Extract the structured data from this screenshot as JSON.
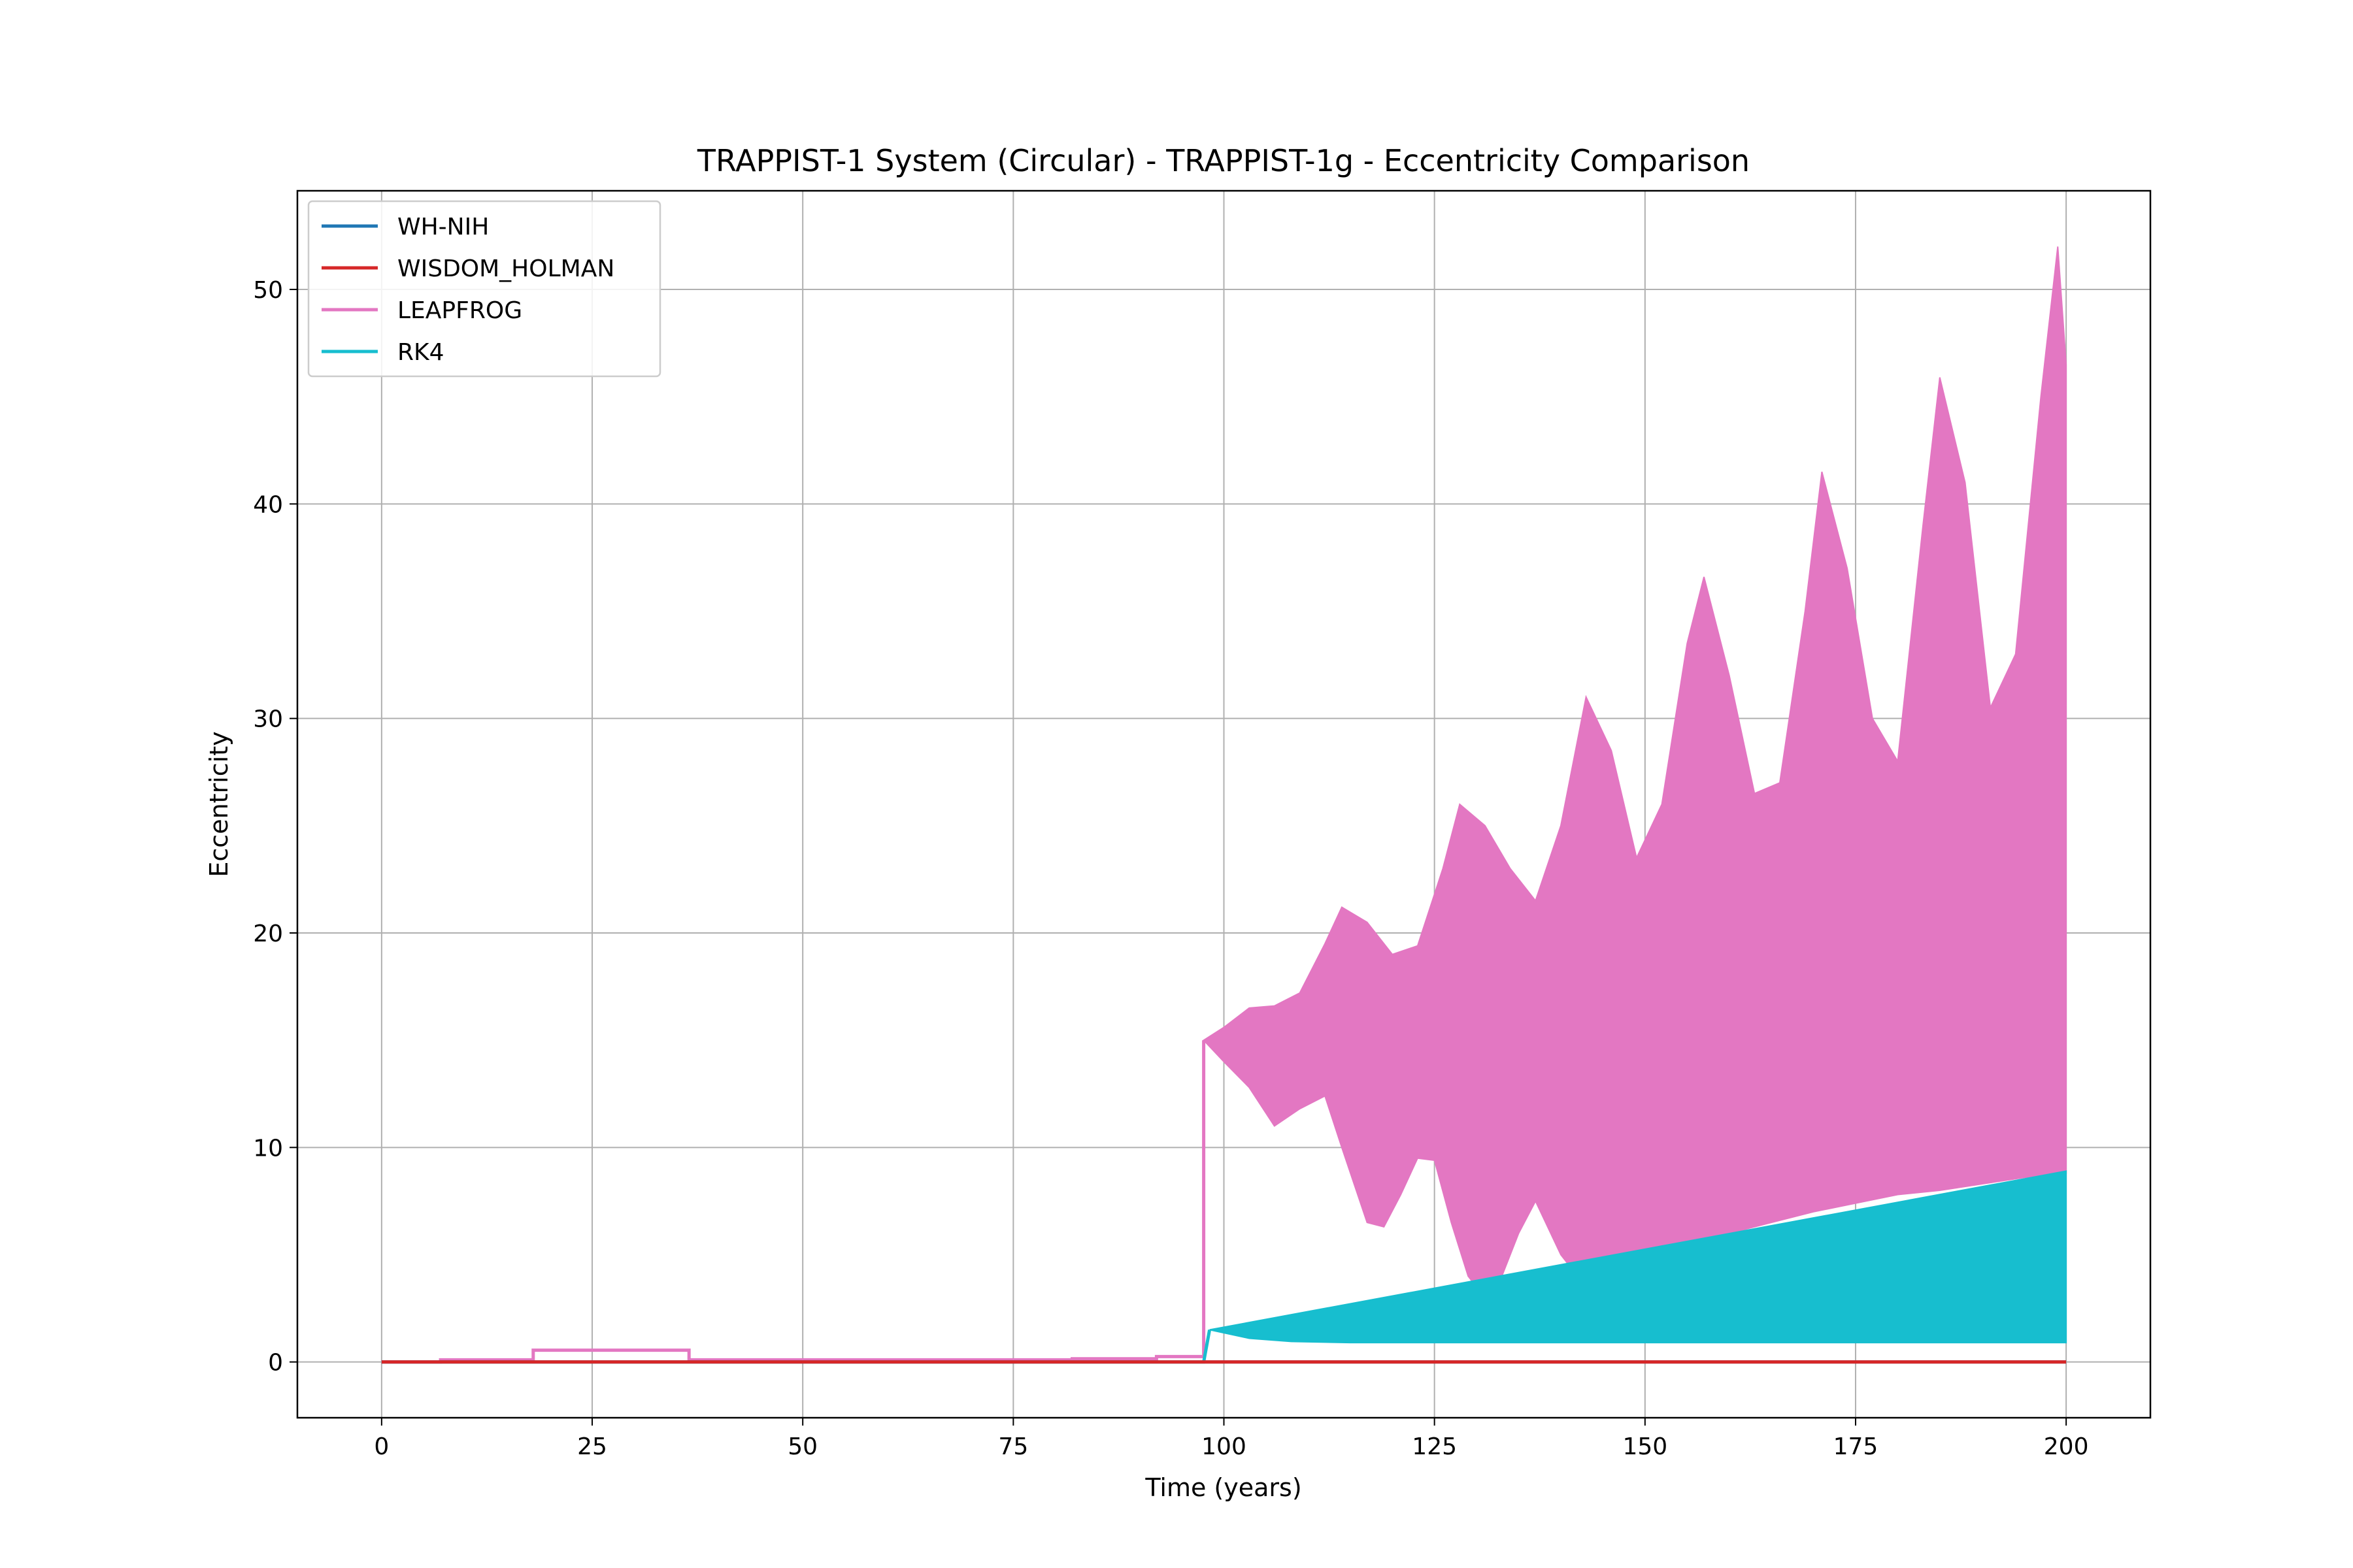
{
  "chart_data": {
    "type": "line",
    "title": "TRAPPIST-1 System (Circular) - TRAPPIST-1g - Eccentricity Comparison",
    "xlabel": "Time (years)",
    "ylabel": "Eccentricity",
    "xlim": [
      -10,
      210
    ],
    "ylim": [
      -2.6,
      54.6
    ],
    "xticks": [
      0,
      25,
      50,
      75,
      100,
      125,
      150,
      175,
      200
    ],
    "yticks": [
      0,
      10,
      20,
      30,
      40,
      50
    ],
    "grid": true,
    "legend_position": "top-left",
    "series": [
      {
        "name": "WH-NIH",
        "color": "#1f77b4",
        "style": "line",
        "x": [
          0,
          200
        ],
        "y": [
          0,
          0
        ]
      },
      {
        "name": "WISDOM_HOLMAN",
        "color": "#d62728",
        "style": "line",
        "x": [
          0,
          200
        ],
        "y": [
          0,
          0
        ]
      },
      {
        "name": "LEAPFROG",
        "color": "#e377c2",
        "style": "band",
        "pre_x": [
          0,
          7,
          7,
          18,
          18,
          36.5,
          36.5,
          82,
          82,
          92,
          92,
          97.6,
          97.6
        ],
        "pre_y": [
          0,
          0,
          0.1,
          0.1,
          0.55,
          0.55,
          0.1,
          0.1,
          0.15,
          0.15,
          0.25,
          0.25,
          15
        ],
        "upper": {
          "x": [
            97.6,
            100,
            103,
            106,
            109,
            112,
            114,
            117,
            120,
            123,
            126,
            128,
            131,
            134,
            137,
            140,
            143,
            146,
            149,
            152,
            155,
            157,
            160,
            163,
            166,
            169,
            171,
            174,
            177,
            180,
            183,
            185,
            188,
            191,
            194,
            197,
            199,
            200
          ],
          "y": [
            15,
            15.6,
            16.5,
            16.6,
            17.2,
            19.5,
            21.2,
            20.5,
            19.0,
            19.4,
            23.0,
            26.0,
            25.0,
            23.0,
            21.5,
            25.0,
            31.0,
            28.5,
            23.5,
            26.0,
            33.5,
            36.6,
            32.0,
            26.5,
            27.0,
            35.0,
            41.5,
            37.0,
            30.0,
            28.0,
            39.0,
            45.9,
            41.0,
            30.5,
            33.0,
            45.0,
            52.0,
            46.5
          ]
        },
        "lower": {
          "x": [
            97.6,
            100,
            103,
            106,
            109,
            112,
            114,
            117,
            119,
            121,
            123,
            125,
            127,
            129,
            131,
            133,
            135,
            137,
            140,
            142,
            144,
            146,
            148,
            150,
            155,
            160,
            165,
            170,
            175,
            180,
            185,
            190,
            195,
            200
          ],
          "y": [
            15,
            14.0,
            12.8,
            11.0,
            11.8,
            12.4,
            10.0,
            6.5,
            6.3,
            7.8,
            9.5,
            9.4,
            6.5,
            4.0,
            3.0,
            4.0,
            6.0,
            7.5,
            5.0,
            4.0,
            4.5,
            4.7,
            4.9,
            5.0,
            5.5,
            6.0,
            6.5,
            7.0,
            7.4,
            7.8,
            8.0,
            8.3,
            8.6,
            8.8
          ]
        }
      },
      {
        "name": "RK4",
        "color": "#17becf",
        "style": "band",
        "pre_x": [
          0,
          97.6,
          98.3
        ],
        "pre_y": [
          0,
          0,
          1.5
        ],
        "upper": {
          "x": [
            98.3,
            200
          ],
          "y": [
            1.5,
            8.9
          ]
        },
        "lower": {
          "x": [
            98.3,
            103,
            108,
            115,
            200
          ],
          "y": [
            1.5,
            1.1,
            0.95,
            0.9,
            0.9
          ]
        }
      }
    ]
  }
}
